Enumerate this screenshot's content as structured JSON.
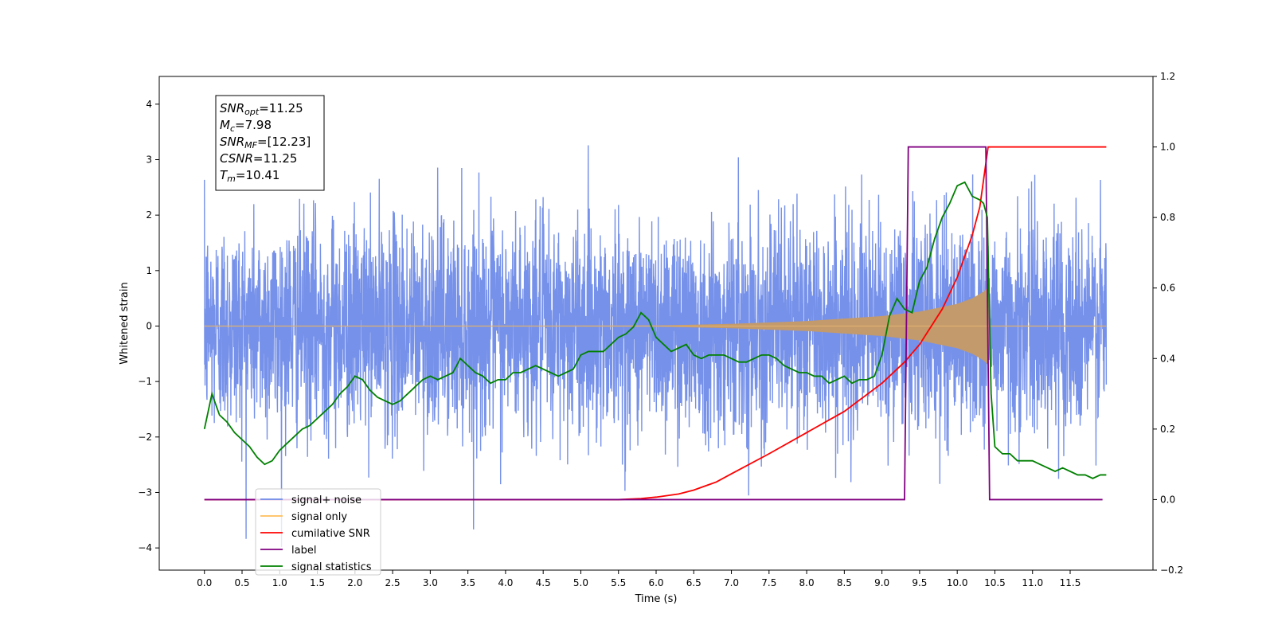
{
  "chart_data": {
    "type": "line",
    "xlabel": "Time (s)",
    "ylabel": "Whitened strain",
    "xlim": [
      -0.6,
      12.6
    ],
    "ylim": [
      -4.4,
      4.5
    ],
    "y2lim": [
      -0.2,
      1.2
    ],
    "x_ticks": [
      "0.0",
      "0.5",
      "1.0",
      "1.5",
      "2.0",
      "2.5",
      "3.0",
      "3.5",
      "4.0",
      "4.5",
      "5.0",
      "5.5",
      "6.0",
      "6.5",
      "7.0",
      "7.5",
      "8.0",
      "8.5",
      "9.0",
      "9.5",
      "10.0",
      "10.5",
      "11.0",
      "11.5"
    ],
    "y_ticks": [
      4,
      3,
      2,
      1,
      0,
      -1,
      -2,
      -3,
      -4
    ],
    "y2_ticks": [
      1.2,
      1.0,
      0.8,
      0.6,
      0.4,
      0.2,
      0.0,
      -0.2
    ],
    "annotation": [
      {
        "base": "SNR",
        "sub": "opt",
        "value": "=11.25"
      },
      {
        "base": "M",
        "sub": "c",
        "value": "=7.98"
      },
      {
        "base": "SNR",
        "sub": "MF",
        "value": "=[12.23]"
      },
      {
        "base": "CSNR",
        "sub": "",
        "value": "=11.25"
      },
      {
        "base": "T",
        "sub": "m",
        "value": "=10.41"
      }
    ],
    "legend_position": "lower-left",
    "legend": [
      {
        "label": "signal+ noise",
        "color": "#6f8be8"
      },
      {
        "label": "signal only",
        "color": "#ffbe5c"
      },
      {
        "label": "cumilative SNR",
        "color": "#ff0000"
      },
      {
        "label": "label",
        "color": "#800080"
      },
      {
        "label": "signal statistics",
        "color": "#008000"
      }
    ],
    "series": [
      {
        "name": "signal+ noise",
        "axis": "left",
        "color": "#6f8be8",
        "noise_std": 1.0,
        "t_start": 0.0,
        "t_end": 11.98
      },
      {
        "name": "signal only",
        "axis": "left",
        "color": "#c39a6b",
        "chirp_envelope": {
          "t": [
            0.0,
            6.0,
            7.0,
            8.0,
            9.0,
            9.5,
            10.0,
            10.2,
            10.35,
            10.41,
            10.43,
            11.98
          ],
          "amp": [
            0.0,
            0.01,
            0.04,
            0.09,
            0.18,
            0.26,
            0.4,
            0.5,
            0.62,
            0.7,
            0.0,
            0.0
          ]
        }
      },
      {
        "name": "cumilative SNR",
        "axis": "right",
        "color": "#ff0000",
        "x": [
          0.0,
          5.0,
          5.5,
          5.8,
          6.0,
          6.3,
          6.5,
          6.8,
          7.0,
          7.5,
          8.0,
          8.5,
          9.0,
          9.3,
          9.5,
          9.8,
          10.0,
          10.2,
          10.3,
          10.41,
          10.42,
          11.98
        ],
        "y": [
          0.0,
          0.0,
          0.0,
          0.003,
          0.007,
          0.016,
          0.027,
          0.05,
          0.073,
          0.13,
          0.19,
          0.25,
          0.33,
          0.39,
          0.44,
          0.54,
          0.63,
          0.75,
          0.83,
          1.0,
          1.0,
          1.0
        ]
      },
      {
        "name": "label",
        "axis": "right",
        "color": "#800080",
        "x": [
          0.0,
          9.3,
          9.35,
          10.38,
          10.43,
          11.93
        ],
        "y": [
          0.0,
          0.0,
          1.0,
          1.0,
          0.0,
          0.0
        ]
      },
      {
        "name": "signal statistics",
        "axis": "right",
        "color": "#008000",
        "x": [
          0.0,
          0.1,
          0.2,
          0.3,
          0.4,
          0.5,
          0.6,
          0.7,
          0.8,
          0.9,
          1.0,
          1.1,
          1.2,
          1.3,
          1.4,
          1.5,
          1.6,
          1.7,
          1.8,
          1.9,
          2.0,
          2.1,
          2.2,
          2.3,
          2.4,
          2.5,
          2.6,
          2.7,
          2.8,
          2.9,
          3.0,
          3.1,
          3.2,
          3.3,
          3.4,
          3.5,
          3.6,
          3.7,
          3.8,
          3.9,
          4.0,
          4.1,
          4.2,
          4.3,
          4.4,
          4.5,
          4.6,
          4.7,
          4.8,
          4.9,
          5.0,
          5.1,
          5.2,
          5.3,
          5.4,
          5.5,
          5.6,
          5.7,
          5.8,
          5.9,
          6.0,
          6.1,
          6.2,
          6.3,
          6.4,
          6.5,
          6.6,
          6.7,
          6.8,
          6.9,
          7.0,
          7.1,
          7.2,
          7.3,
          7.4,
          7.5,
          7.6,
          7.7,
          7.8,
          7.9,
          8.0,
          8.1,
          8.2,
          8.3,
          8.4,
          8.5,
          8.6,
          8.7,
          8.8,
          8.9,
          9.0,
          9.1,
          9.2,
          9.3,
          9.4,
          9.5,
          9.6,
          9.7,
          9.8,
          9.9,
          10.0,
          10.1,
          10.2,
          10.3,
          10.35,
          10.4,
          10.45,
          10.5,
          10.6,
          10.7,
          10.8,
          10.9,
          11.0,
          11.1,
          11.2,
          11.3,
          11.4,
          11.5,
          11.6,
          11.7,
          11.8,
          11.9,
          11.98
        ],
        "y": [
          0.2,
          0.3,
          0.24,
          0.22,
          0.19,
          0.17,
          0.15,
          0.12,
          0.1,
          0.11,
          0.14,
          0.16,
          0.18,
          0.2,
          0.21,
          0.23,
          0.25,
          0.27,
          0.3,
          0.32,
          0.35,
          0.34,
          0.31,
          0.29,
          0.28,
          0.27,
          0.28,
          0.3,
          0.32,
          0.34,
          0.35,
          0.34,
          0.35,
          0.36,
          0.4,
          0.38,
          0.36,
          0.35,
          0.33,
          0.34,
          0.34,
          0.36,
          0.36,
          0.37,
          0.38,
          0.37,
          0.36,
          0.35,
          0.36,
          0.37,
          0.41,
          0.42,
          0.42,
          0.42,
          0.44,
          0.46,
          0.47,
          0.49,
          0.53,
          0.51,
          0.46,
          0.44,
          0.42,
          0.43,
          0.44,
          0.41,
          0.4,
          0.41,
          0.41,
          0.41,
          0.4,
          0.39,
          0.39,
          0.4,
          0.41,
          0.41,
          0.4,
          0.38,
          0.37,
          0.36,
          0.36,
          0.35,
          0.35,
          0.33,
          0.34,
          0.35,
          0.33,
          0.34,
          0.34,
          0.35,
          0.41,
          0.52,
          0.57,
          0.54,
          0.53,
          0.62,
          0.66,
          0.74,
          0.8,
          0.84,
          0.89,
          0.9,
          0.86,
          0.85,
          0.84,
          0.8,
          0.3,
          0.15,
          0.13,
          0.13,
          0.11,
          0.11,
          0.11,
          0.1,
          0.09,
          0.08,
          0.09,
          0.08,
          0.07,
          0.07,
          0.06,
          0.07,
          0.07
        ]
      }
    ]
  }
}
